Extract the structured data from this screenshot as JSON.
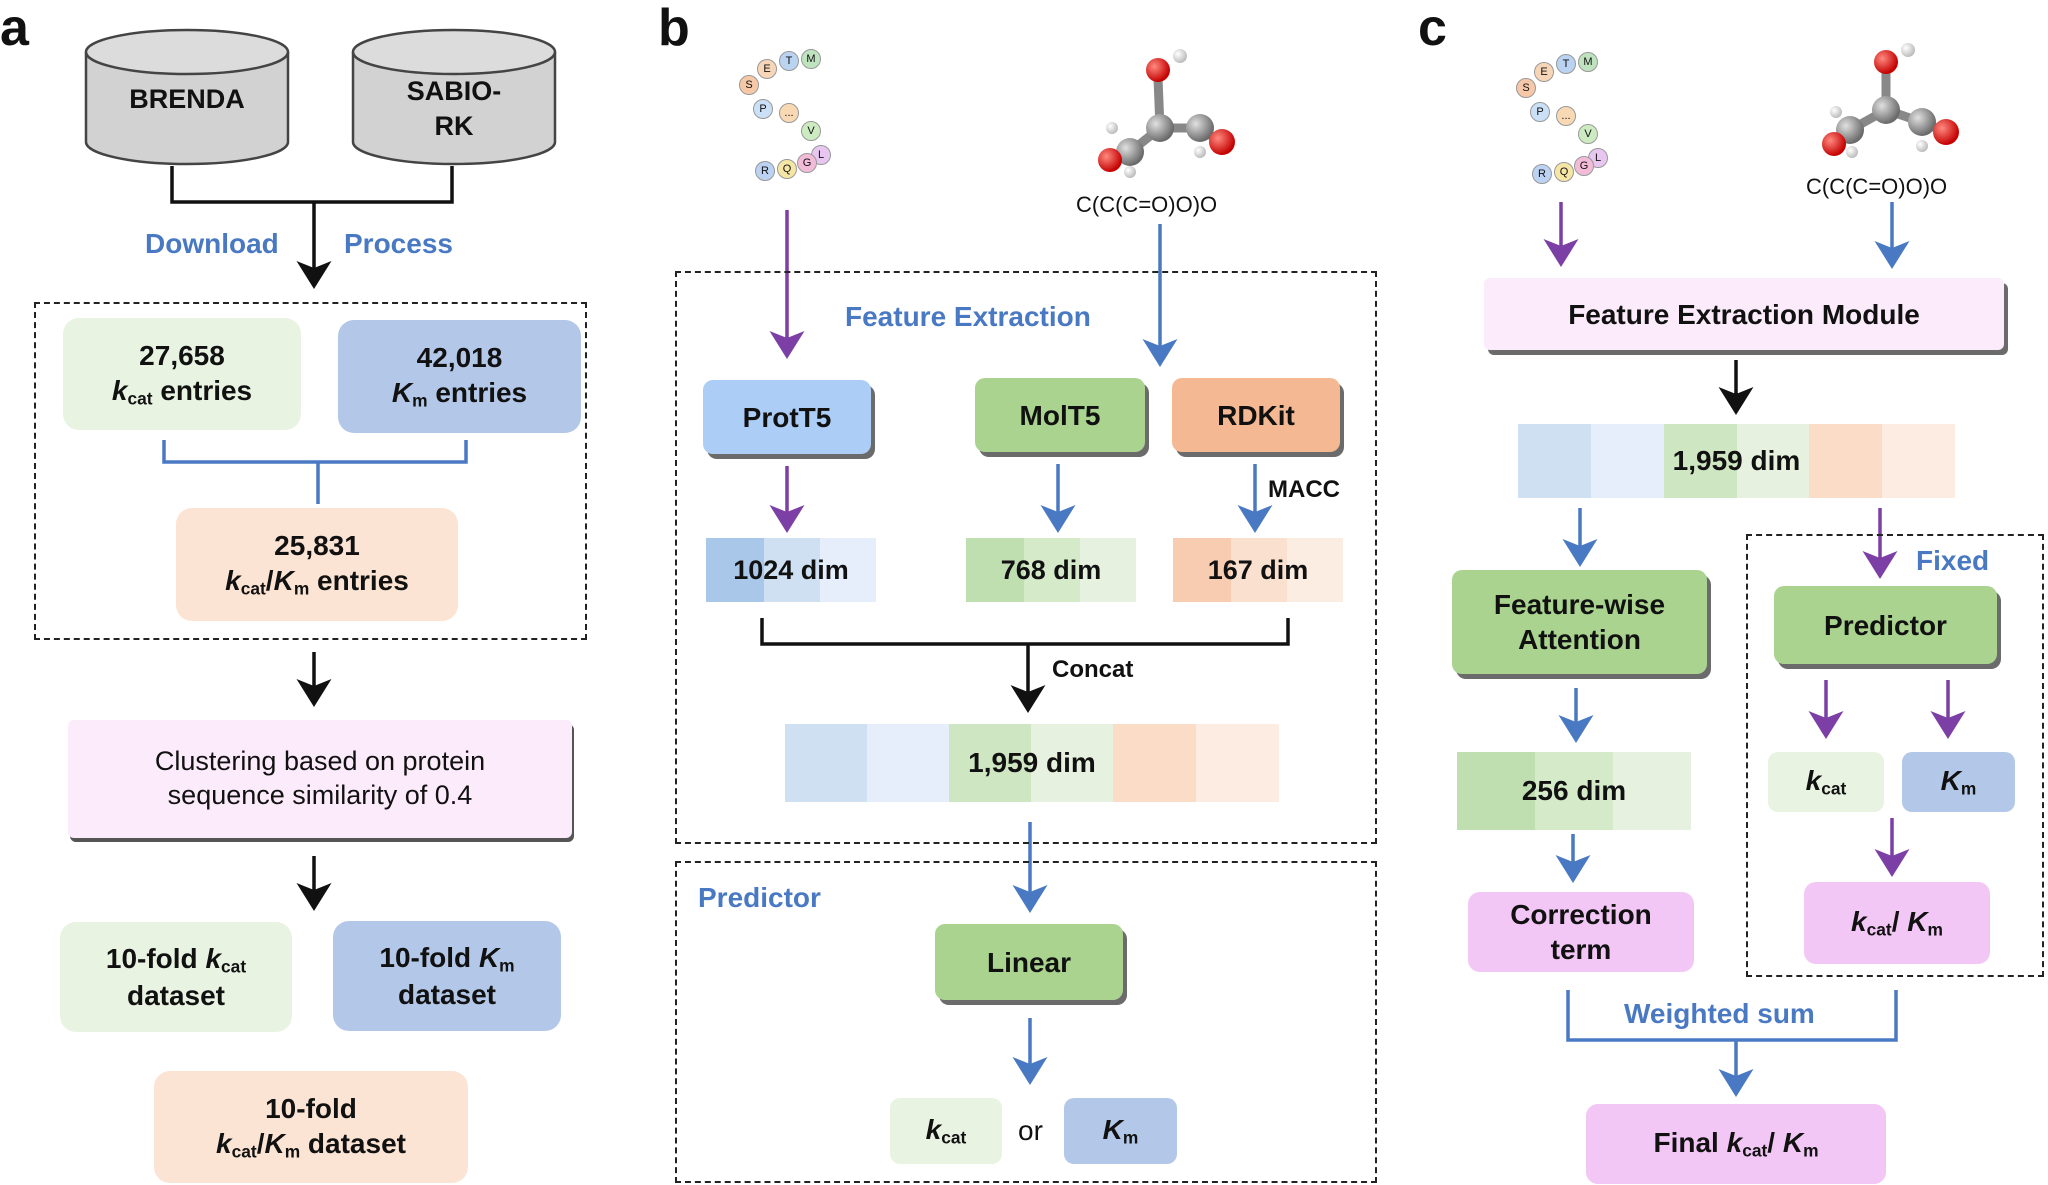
{
  "panel_a": {
    "letter": "a",
    "db1": "BRENDA",
    "db2_line1": "SABIO-",
    "db2_line2": "RK",
    "download": "Download",
    "process": "Process",
    "kcat_count": "27,658",
    "kcat_symbol": "k",
    "kcat_sub": "cat",
    "entries": "entries",
    "km_count": "42,018",
    "km_symbol": "K",
    "km_sub": "m",
    "kcatkm_count": "25,831",
    "cluster_line1": "Clustering based on protein",
    "cluster_line2": "sequence similarity of 0.4",
    "tenfold": "10-fold",
    "dataset": "dataset",
    "slash": "/"
  },
  "panel_b": {
    "letter": "b",
    "seq_letters": [
      "E",
      "T",
      "M",
      "S",
      "P",
      "...",
      "V",
      "L",
      "R",
      "Q",
      "G"
    ],
    "smiles": "C(C(C=O)O)O",
    "feature_extraction": "Feature Extraction",
    "prott5": "ProtT5",
    "molt5": "MolT5",
    "rdkit": "RDKit",
    "macc": "MACC",
    "dim_1024": "1024 dim",
    "dim_768": "768 dim",
    "dim_167": "167 dim",
    "concat": "Concat",
    "dim_1959": "1,959 dim",
    "predictor": "Predictor",
    "linear": "Linear",
    "or": "or"
  },
  "panel_c": {
    "letter": "c",
    "smiles": "C(C(C=O)O)O",
    "feature_module": "Feature Extraction Module",
    "dim_1959": "1,959 dim",
    "attention_line1": "Feature-wise",
    "attention_line2": "Attention",
    "fixed": "Fixed",
    "predictor": "Predictor",
    "dim_256": "256 dim",
    "correction_line1": "Correction",
    "correction_line2": "term",
    "weighted_sum": "Weighted sum",
    "final": "Final"
  },
  "colors": {
    "green_light": "#e8f3e2",
    "blue_light": "#b3c8e8",
    "peach_light": "#fbe4d4",
    "pink_light": "#fcecfb",
    "green_box": "#a9d38e",
    "blue_box": "#abcdf6",
    "orange_box": "#f4b892",
    "lavender_box": "#f2c6f5",
    "purple_arrow": "#7b3fa5",
    "blue_arrow": "#4a79c4"
  }
}
